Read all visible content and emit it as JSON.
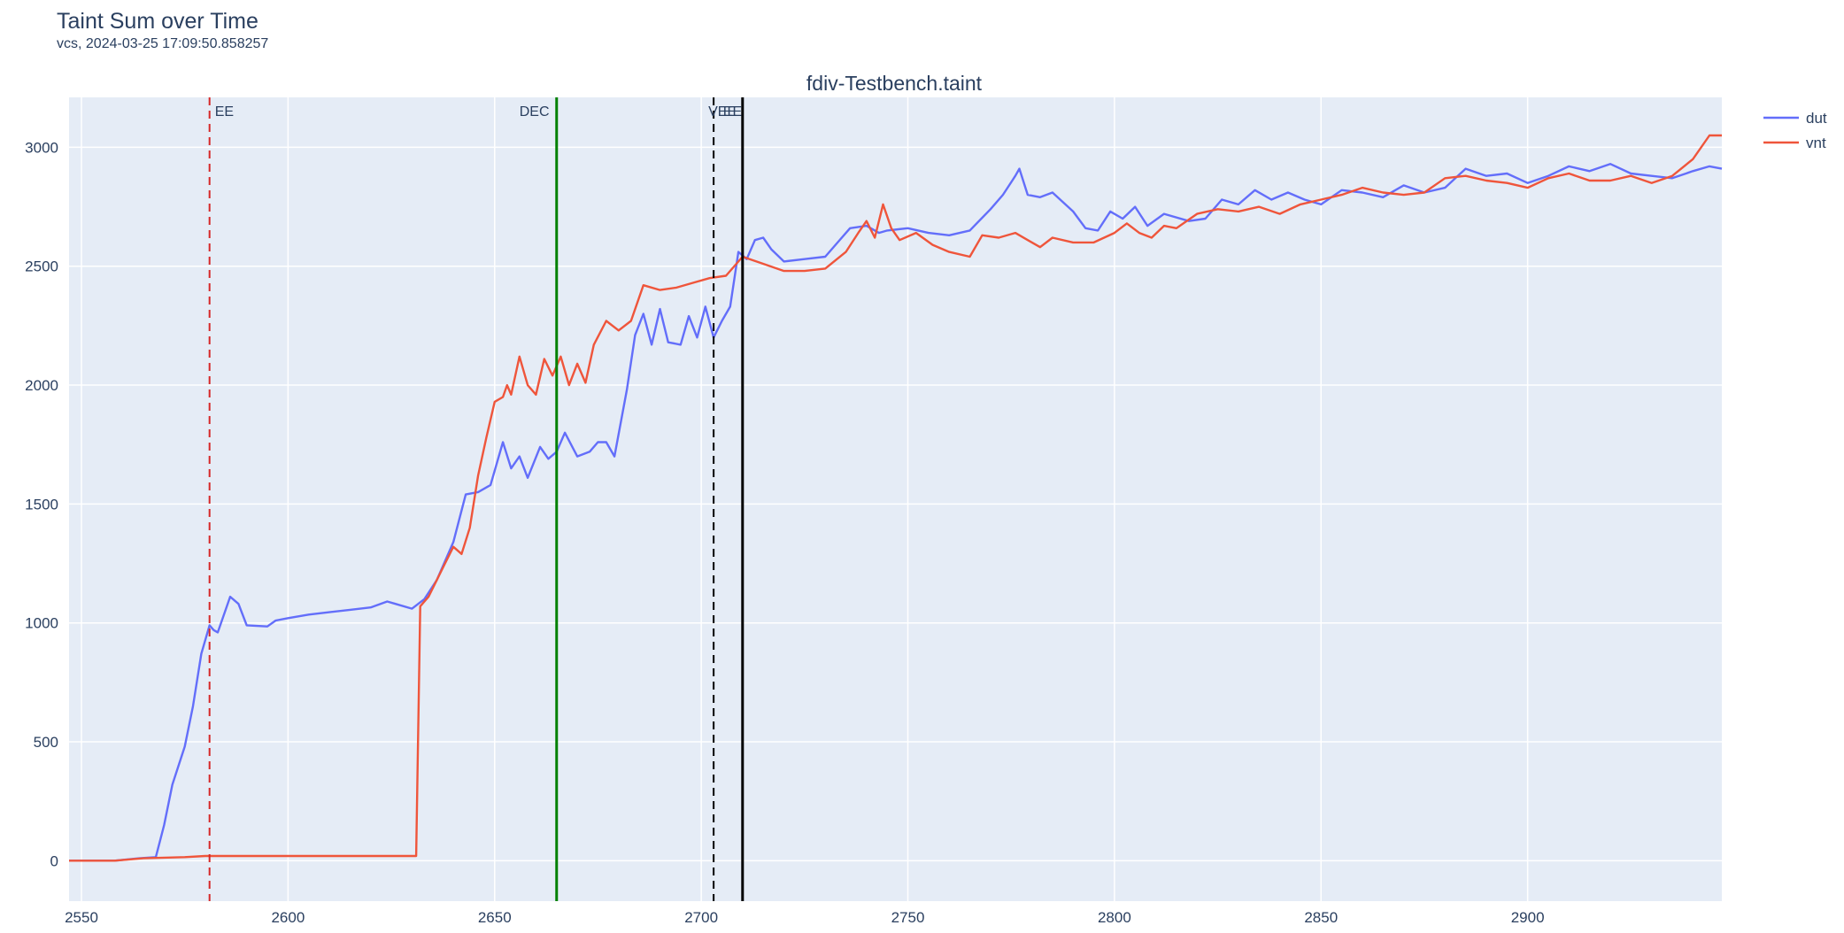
{
  "header": {
    "title": "Taint Sum over Time",
    "subtitle": "vcs, 2024-03-25 17:09:50.858257"
  },
  "chart_data": {
    "type": "line",
    "title": "fdiv-Testbench.taint",
    "xlabel": "",
    "ylabel": "",
    "xlim": [
      2547,
      2947
    ],
    "ylim": [
      -170,
      3210
    ],
    "x_ticks": [
      2550,
      2600,
      2650,
      2700,
      2750,
      2800,
      2850,
      2900
    ],
    "y_ticks": [
      0,
      500,
      1000,
      1500,
      2000,
      2500,
      3000
    ],
    "grid": true,
    "legend_position": "top-right",
    "markers": [
      {
        "label": "EE",
        "x": 2581,
        "color": "#d62728",
        "style": "dashed"
      },
      {
        "label": "DEC",
        "x": 2665,
        "color": "#008000",
        "style": "solid"
      },
      {
        "label": "VEE",
        "x": 2703,
        "color": "#000000",
        "style": "dashed"
      },
      {
        "label": "EE",
        "x": 2710,
        "color": "#000000",
        "style": "solid"
      }
    ],
    "series": [
      {
        "name": "dut",
        "color": "#636efa",
        "points": [
          [
            2547,
            0
          ],
          [
            2558,
            0
          ],
          [
            2564,
            10
          ],
          [
            2568,
            15
          ],
          [
            2570,
            150
          ],
          [
            2572,
            320
          ],
          [
            2575,
            480
          ],
          [
            2577,
            650
          ],
          [
            2579,
            870
          ],
          [
            2581,
            990
          ],
          [
            2582,
            970
          ],
          [
            2583,
            960
          ],
          [
            2586,
            1110
          ],
          [
            2588,
            1080
          ],
          [
            2590,
            990
          ],
          [
            2595,
            985
          ],
          [
            2597,
            1010
          ],
          [
            2600,
            1020
          ],
          [
            2605,
            1035
          ],
          [
            2610,
            1045
          ],
          [
            2615,
            1055
          ],
          [
            2620,
            1065
          ],
          [
            2624,
            1090
          ],
          [
            2626,
            1080
          ],
          [
            2630,
            1060
          ],
          [
            2633,
            1100
          ],
          [
            2636,
            1180
          ],
          [
            2640,
            1340
          ],
          [
            2643,
            1540
          ],
          [
            2646,
            1550
          ],
          [
            2649,
            1580
          ],
          [
            2652,
            1760
          ],
          [
            2654,
            1650
          ],
          [
            2656,
            1700
          ],
          [
            2658,
            1610
          ],
          [
            2661,
            1740
          ],
          [
            2663,
            1690
          ],
          [
            2665,
            1720
          ],
          [
            2667,
            1800
          ],
          [
            2670,
            1700
          ],
          [
            2673,
            1720
          ],
          [
            2675,
            1760
          ],
          [
            2677,
            1760
          ],
          [
            2679,
            1700
          ],
          [
            2682,
            1980
          ],
          [
            2684,
            2210
          ],
          [
            2686,
            2300
          ],
          [
            2688,
            2170
          ],
          [
            2690,
            2320
          ],
          [
            2692,
            2180
          ],
          [
            2695,
            2170
          ],
          [
            2697,
            2290
          ],
          [
            2699,
            2200
          ],
          [
            2701,
            2330
          ],
          [
            2703,
            2200
          ],
          [
            2705,
            2270
          ],
          [
            2707,
            2330
          ],
          [
            2709,
            2560
          ],
          [
            2711,
            2530
          ],
          [
            2713,
            2610
          ],
          [
            2715,
            2620
          ],
          [
            2717,
            2570
          ],
          [
            2720,
            2520
          ],
          [
            2725,
            2530
          ],
          [
            2730,
            2540
          ],
          [
            2733,
            2600
          ],
          [
            2736,
            2660
          ],
          [
            2740,
            2670
          ],
          [
            2743,
            2640
          ],
          [
            2745,
            2650
          ],
          [
            2750,
            2660
          ],
          [
            2755,
            2640
          ],
          [
            2760,
            2630
          ],
          [
            2765,
            2650
          ],
          [
            2770,
            2740
          ],
          [
            2773,
            2800
          ],
          [
            2776,
            2880
          ],
          [
            2777,
            2910
          ],
          [
            2779,
            2800
          ],
          [
            2782,
            2790
          ],
          [
            2785,
            2810
          ],
          [
            2790,
            2730
          ],
          [
            2793,
            2660
          ],
          [
            2796,
            2650
          ],
          [
            2799,
            2730
          ],
          [
            2802,
            2700
          ],
          [
            2805,
            2750
          ],
          [
            2808,
            2670
          ],
          [
            2812,
            2720
          ],
          [
            2818,
            2690
          ],
          [
            2822,
            2700
          ],
          [
            2826,
            2780
          ],
          [
            2830,
            2760
          ],
          [
            2834,
            2820
          ],
          [
            2838,
            2780
          ],
          [
            2842,
            2810
          ],
          [
            2846,
            2780
          ],
          [
            2850,
            2760
          ],
          [
            2855,
            2820
          ],
          [
            2860,
            2810
          ],
          [
            2865,
            2790
          ],
          [
            2870,
            2840
          ],
          [
            2875,
            2810
          ],
          [
            2880,
            2830
          ],
          [
            2885,
            2910
          ],
          [
            2890,
            2880
          ],
          [
            2895,
            2890
          ],
          [
            2900,
            2850
          ],
          [
            2905,
            2880
          ],
          [
            2910,
            2920
          ],
          [
            2915,
            2900
          ],
          [
            2920,
            2930
          ],
          [
            2925,
            2890
          ],
          [
            2930,
            2880
          ],
          [
            2935,
            2870
          ],
          [
            2940,
            2900
          ],
          [
            2944,
            2920
          ],
          [
            2947,
            2910
          ]
        ]
      },
      {
        "name": "vnt",
        "color": "#ef553b",
        "points": [
          [
            2547,
            0
          ],
          [
            2558,
            0
          ],
          [
            2565,
            10
          ],
          [
            2575,
            15
          ],
          [
            2580,
            20
          ],
          [
            2631,
            20
          ],
          [
            2632,
            1070
          ],
          [
            2634,
            1110
          ],
          [
            2636,
            1180
          ],
          [
            2638,
            1250
          ],
          [
            2640,
            1320
          ],
          [
            2642,
            1290
          ],
          [
            2644,
            1400
          ],
          [
            2646,
            1620
          ],
          [
            2648,
            1780
          ],
          [
            2650,
            1930
          ],
          [
            2652,
            1950
          ],
          [
            2653,
            2000
          ],
          [
            2654,
            1960
          ],
          [
            2656,
            2120
          ],
          [
            2658,
            2000
          ],
          [
            2660,
            1960
          ],
          [
            2662,
            2110
          ],
          [
            2664,
            2040
          ],
          [
            2666,
            2120
          ],
          [
            2668,
            2000
          ],
          [
            2670,
            2090
          ],
          [
            2672,
            2010
          ],
          [
            2674,
            2170
          ],
          [
            2677,
            2270
          ],
          [
            2680,
            2230
          ],
          [
            2683,
            2270
          ],
          [
            2686,
            2420
          ],
          [
            2690,
            2400
          ],
          [
            2694,
            2410
          ],
          [
            2698,
            2430
          ],
          [
            2702,
            2450
          ],
          [
            2706,
            2460
          ],
          [
            2710,
            2540
          ],
          [
            2715,
            2510
          ],
          [
            2720,
            2480
          ],
          [
            2725,
            2480
          ],
          [
            2730,
            2490
          ],
          [
            2735,
            2560
          ],
          [
            2738,
            2640
          ],
          [
            2740,
            2690
          ],
          [
            2742,
            2620
          ],
          [
            2744,
            2760
          ],
          [
            2746,
            2660
          ],
          [
            2748,
            2610
          ],
          [
            2752,
            2640
          ],
          [
            2756,
            2590
          ],
          [
            2760,
            2560
          ],
          [
            2765,
            2540
          ],
          [
            2768,
            2630
          ],
          [
            2772,
            2620
          ],
          [
            2776,
            2640
          ],
          [
            2779,
            2610
          ],
          [
            2782,
            2580
          ],
          [
            2785,
            2620
          ],
          [
            2790,
            2600
          ],
          [
            2795,
            2600
          ],
          [
            2800,
            2640
          ],
          [
            2803,
            2680
          ],
          [
            2806,
            2640
          ],
          [
            2809,
            2620
          ],
          [
            2812,
            2670
          ],
          [
            2815,
            2660
          ],
          [
            2820,
            2720
          ],
          [
            2825,
            2740
          ],
          [
            2830,
            2730
          ],
          [
            2835,
            2750
          ],
          [
            2840,
            2720
          ],
          [
            2845,
            2760
          ],
          [
            2850,
            2780
          ],
          [
            2855,
            2800
          ],
          [
            2860,
            2830
          ],
          [
            2865,
            2810
          ],
          [
            2870,
            2800
          ],
          [
            2875,
            2810
          ],
          [
            2880,
            2870
          ],
          [
            2885,
            2880
          ],
          [
            2890,
            2860
          ],
          [
            2895,
            2850
          ],
          [
            2900,
            2830
          ],
          [
            2905,
            2870
          ],
          [
            2910,
            2890
          ],
          [
            2915,
            2860
          ],
          [
            2920,
            2860
          ],
          [
            2925,
            2880
          ],
          [
            2930,
            2850
          ],
          [
            2935,
            2880
          ],
          [
            2940,
            2950
          ],
          [
            2944,
            3050
          ],
          [
            2947,
            3050
          ]
        ]
      }
    ]
  }
}
